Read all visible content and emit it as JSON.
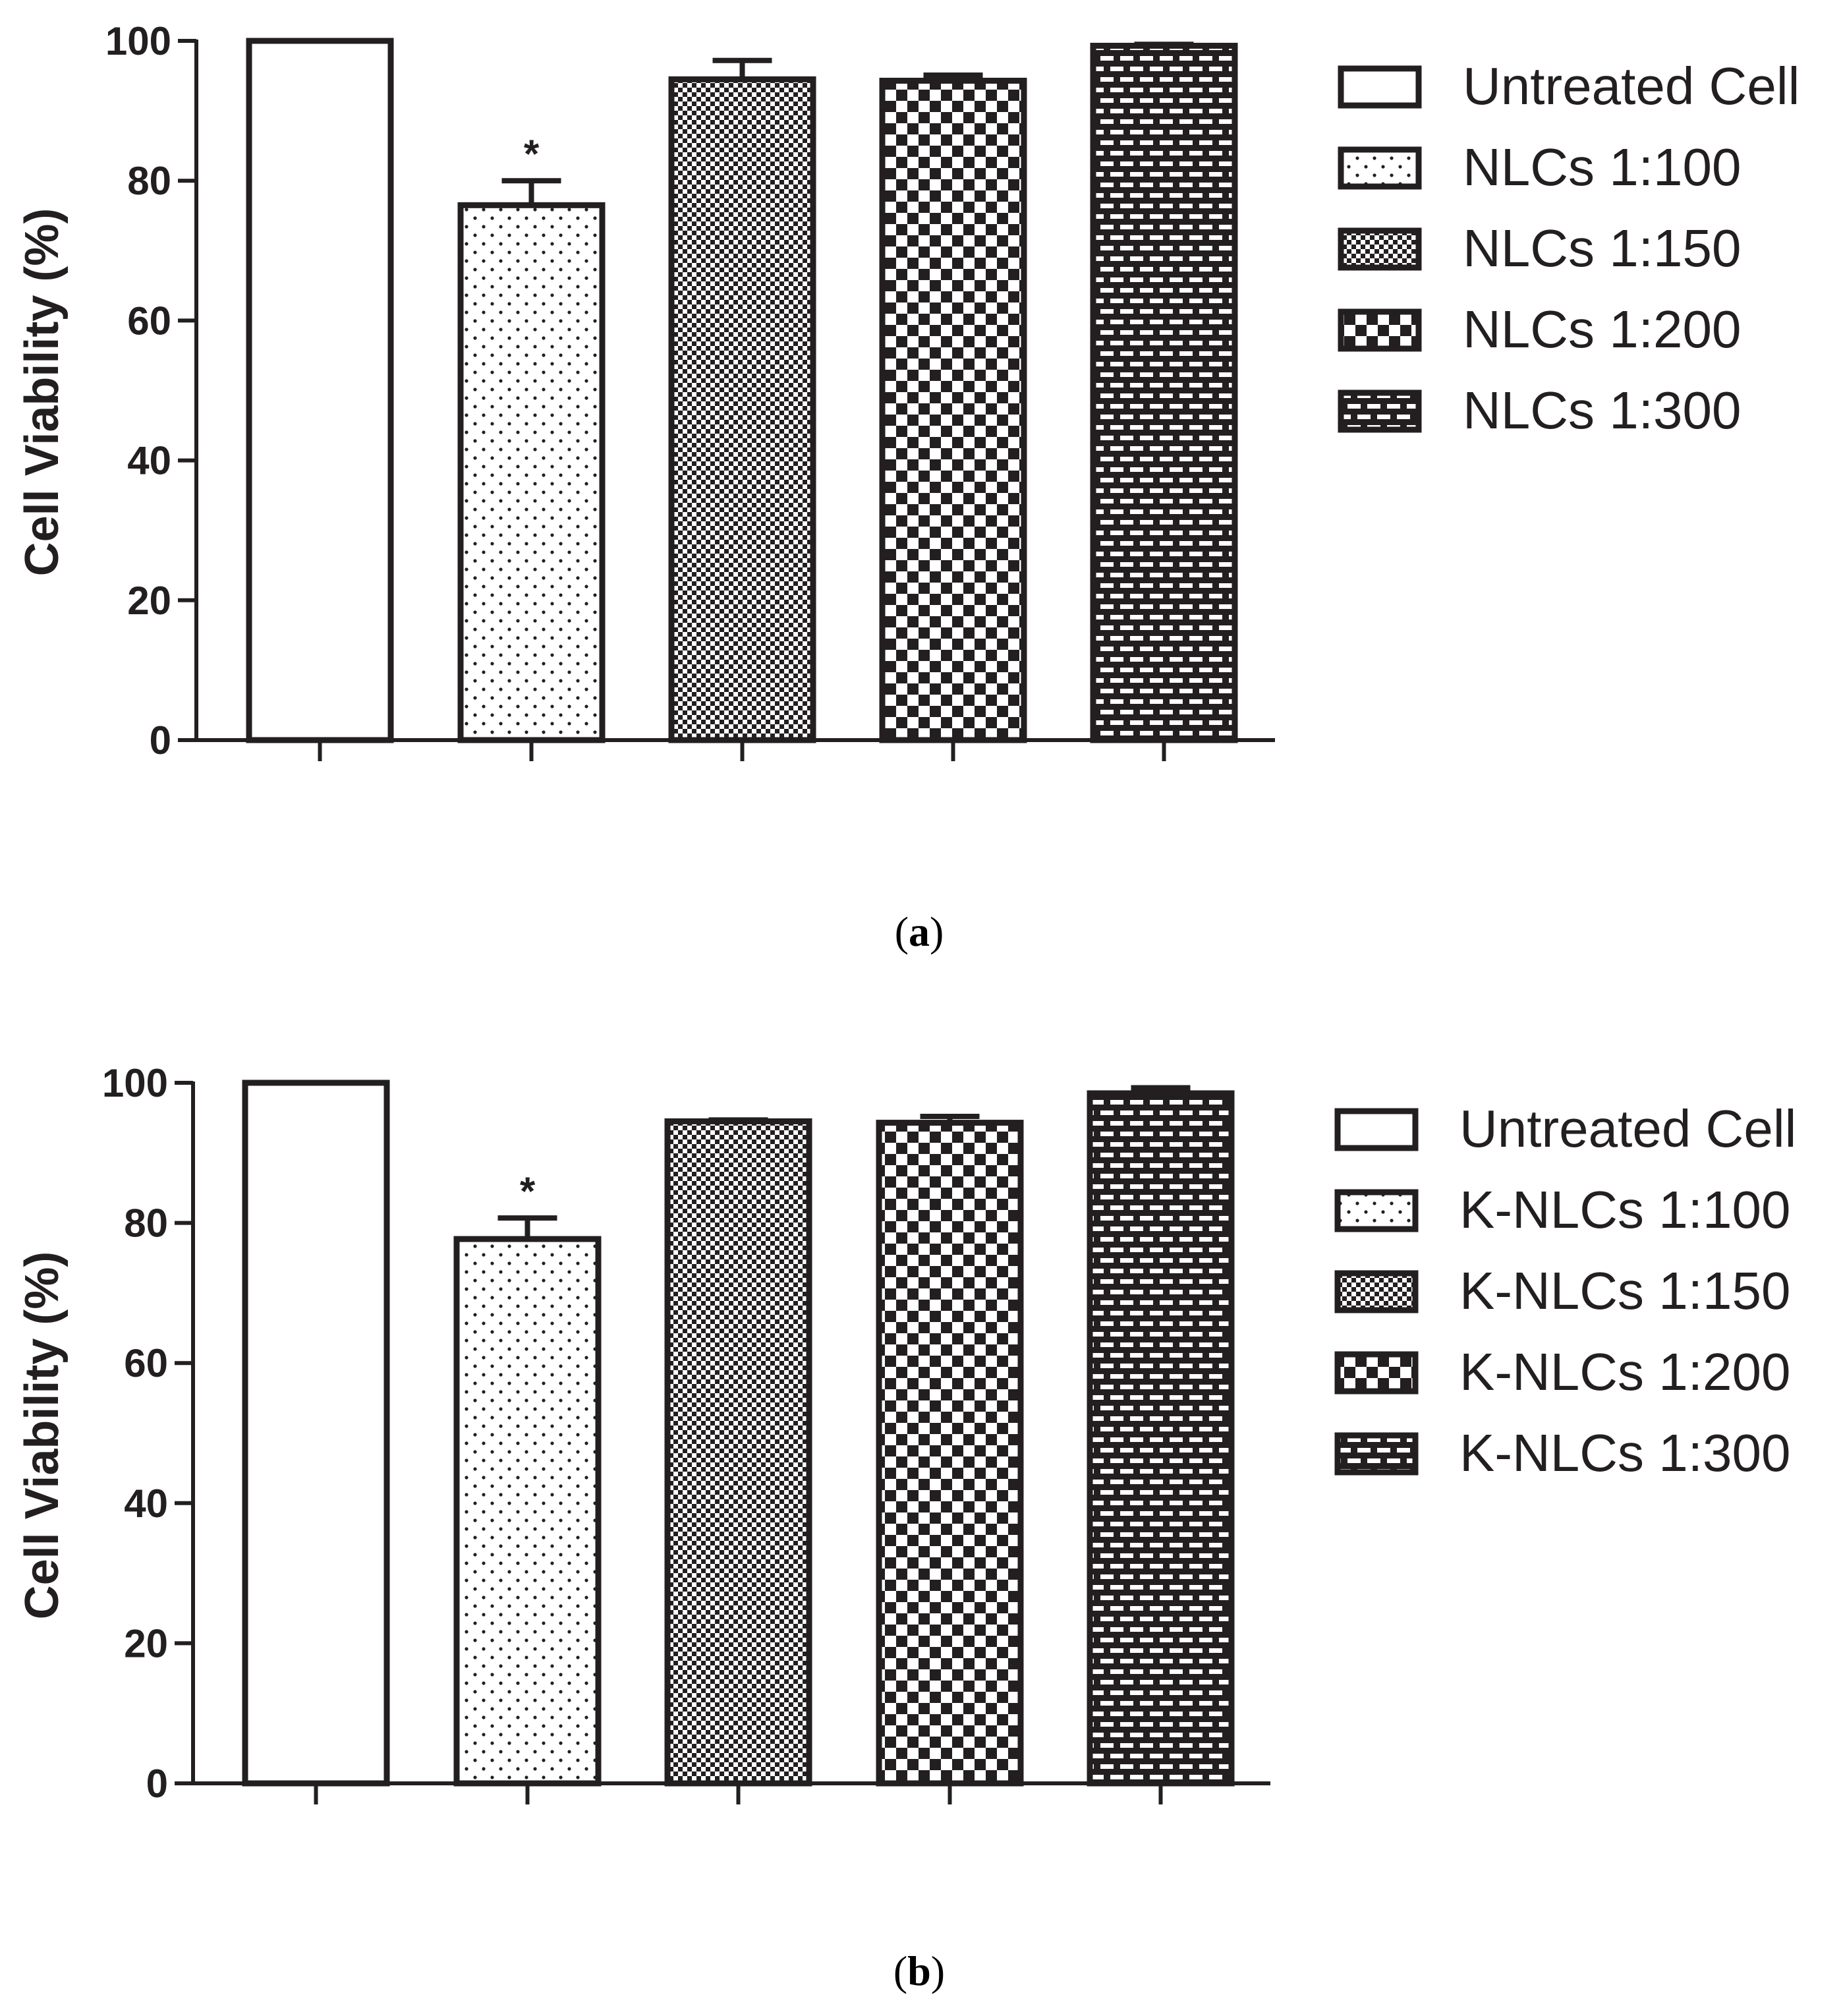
{
  "colors": {
    "ink": "#231f20",
    "background": "#ffffff"
  },
  "chart_data": [
    {
      "type": "bar",
      "panel_label": "a",
      "ylabel": "Cell Viability (%)",
      "xlabel": "",
      "ylim": [
        0,
        100
      ],
      "yticks": [
        0,
        20,
        40,
        60,
        80,
        100
      ],
      "categories": [
        "Untreated Cell",
        "NLCs 1:100",
        "NLCs 1:150",
        "NLCs 1:200",
        "NLCs 1:300"
      ],
      "values": [
        100,
        76.5,
        94.5,
        94.3,
        99.3
      ],
      "errors": [
        0,
        3.5,
        2.7,
        0.8,
        0.2
      ],
      "significance": [
        "",
        "*",
        "",
        "",
        ""
      ],
      "patterns": [
        "none",
        "dots",
        "fine-checker",
        "checker",
        "brick"
      ],
      "legend_position": "right"
    },
    {
      "type": "bar",
      "panel_label": "b",
      "ylabel": "Cell Viability (%)",
      "xlabel": "",
      "ylim": [
        0,
        100
      ],
      "yticks": [
        0,
        20,
        40,
        60,
        80,
        100
      ],
      "categories": [
        "Untreated Cell",
        "K-NLCs 1:100",
        "K-NLCs 1:150",
        "K-NLCs 1:200",
        "K-NLCs 1:300"
      ],
      "values": [
        100,
        77.7,
        94.5,
        94.3,
        98.5
      ],
      "errors": [
        0,
        3.0,
        0.2,
        0.9,
        0.8
      ],
      "significance": [
        "",
        "*",
        "",
        "",
        ""
      ],
      "patterns": [
        "none",
        "dots",
        "fine-checker",
        "checker",
        "brick"
      ],
      "legend_position": "right"
    }
  ]
}
